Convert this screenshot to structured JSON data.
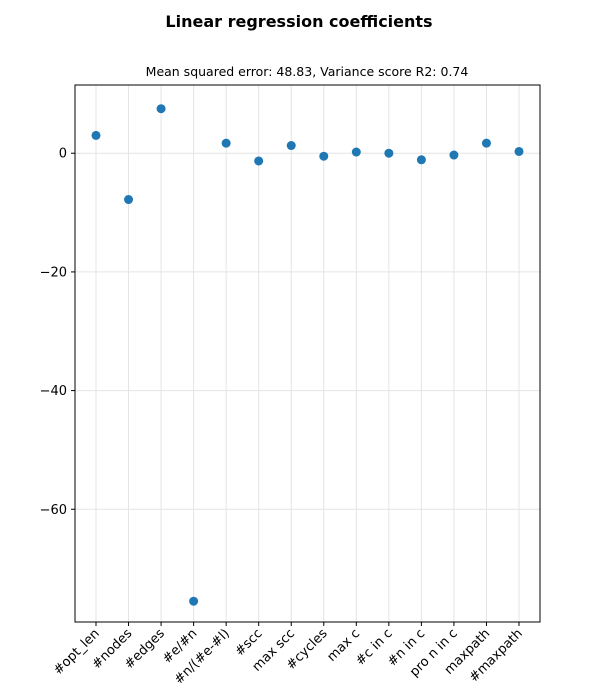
{
  "chart_data": {
    "type": "scatter",
    "title": "Linear regression coefficients",
    "subtitle": "Mean squared error: 48.83, Variance score R2: 0.74",
    "xlabel": "",
    "ylabel": "",
    "categories": [
      "#opt_len",
      "#nodes",
      "#edges",
      "#e/#n",
      "#n/(#e-#l)",
      "#scc",
      "max scc",
      "#cycles",
      "max c",
      "#c in c",
      "#n in c",
      "pro n in c",
      "maxpath",
      "#maxpath"
    ],
    "values": [
      3.0,
      -7.8,
      7.5,
      -75.5,
      1.7,
      -1.3,
      1.3,
      -0.5,
      0.2,
      0.0,
      -1.1,
      -0.3,
      1.7,
      0.3
    ],
    "yticks": [
      0,
      -20,
      -40,
      -60
    ],
    "ytick_labels": [
      "0",
      "−20",
      "−40",
      "−60"
    ],
    "ylim": [
      -79.0,
      11.5
    ],
    "grid": true,
    "legend": "none",
    "marker_color": "#1f77b4"
  }
}
